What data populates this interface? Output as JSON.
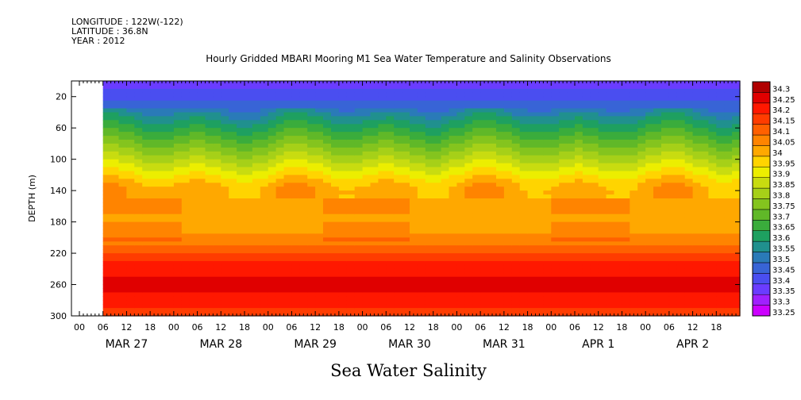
{
  "meta": {
    "longitude": "LONGITUDE : 122W(-122)",
    "latitude": "LATITUDE : 36.8N",
    "year": "YEAR : 2012"
  },
  "chart_data": {
    "type": "heatmap",
    "title": "Hourly Gridded MBARI Mooring M1 Sea Water Temperature and Salinity Observations",
    "subtitle": "Sea Water Salinity",
    "ylabel": "DEPTH (m)",
    "y_axis": {
      "ylim": [
        300,
        0
      ],
      "ticks": [
        20,
        60,
        100,
        140,
        180,
        220,
        260,
        300
      ]
    },
    "x_axis": {
      "start": "MAR 27 00",
      "data_start_hour": 6,
      "hours_total": 168,
      "hour_ticks": [
        "00",
        "06",
        "12",
        "18"
      ],
      "day_labels": [
        "MAR 27",
        "MAR 28",
        "MAR 29",
        "MAR 30",
        "MAR 31",
        "APR  1",
        "APR  2"
      ]
    },
    "colorbar": {
      "levels": [
        33.25,
        33.3,
        33.35,
        33.4,
        33.45,
        33.5,
        33.55,
        33.6,
        33.65,
        33.7,
        33.75,
        33.8,
        33.85,
        33.9,
        33.95,
        34,
        34.05,
        34.1,
        34.15,
        34.2,
        34.25,
        34.3
      ],
      "labels": [
        "33.25",
        "33.3",
        "33.35",
        "33.4",
        "33.45",
        "33.5",
        "33.55",
        "33.6",
        "33.65",
        "33.7",
        "33.75",
        "33.8",
        "33.85",
        "33.9",
        "33.95",
        "34",
        "34.05",
        "34.1",
        "34.15",
        "34.2",
        "34.25",
        "34.3"
      ],
      "colors": [
        "#cc00ff",
        "#a020ff",
        "#6a3cff",
        "#4a4ef0",
        "#3864d6",
        "#2a7ab8",
        "#20908e",
        "#1ea060",
        "#3aac3c",
        "#60b828",
        "#84c41e",
        "#a6d018",
        "#c8dc10",
        "#ecee00",
        "#ffd400",
        "#ffa800",
        "#ff8400",
        "#ff6000",
        "#ff3c00",
        "#ff1800",
        "#e00000",
        "#b00000"
      ]
    },
    "profile": {
      "depths": [
        0,
        10,
        20,
        30,
        40,
        50,
        60,
        70,
        80,
        90,
        100,
        110,
        120,
        130,
        140,
        160,
        180,
        200,
        210,
        220,
        230,
        240,
        250,
        260,
        270,
        280,
        290,
        300
      ],
      "values": [
        33.38,
        33.4,
        33.43,
        33.48,
        33.54,
        33.6,
        33.65,
        33.7,
        33.75,
        33.8,
        33.85,
        33.9,
        33.95,
        34.0,
        34.03,
        34.02,
        34.01,
        34.06,
        34.1,
        34.15,
        34.2,
        34.22,
        34.25,
        34.27,
        34.25,
        34.22,
        34.2,
        34.18
      ]
    }
  }
}
